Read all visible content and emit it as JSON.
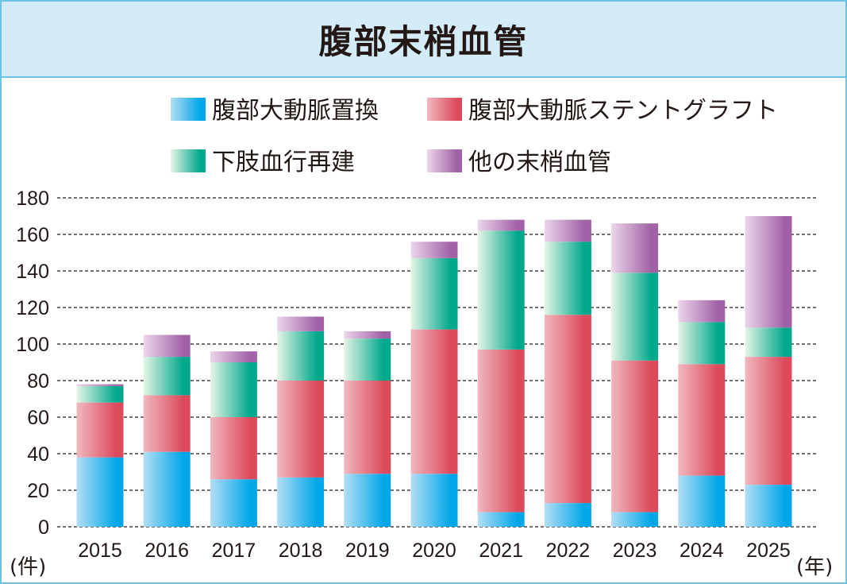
{
  "header": {
    "title": "腹部末梢血管"
  },
  "colors": {
    "border": "#6bc4e6",
    "header_bg": "#d4ebf8"
  },
  "chart_data": {
    "type": "bar",
    "stacked": true,
    "title": "腹部末梢血管",
    "xlabel": "(年)",
    "ylabel": "(件)",
    "ylim": [
      0,
      180
    ],
    "yticks": [
      0,
      20,
      40,
      60,
      80,
      100,
      120,
      140,
      160,
      180
    ],
    "grid": true,
    "legend_position": "top",
    "categories": [
      "2015",
      "2016",
      "2017",
      "2018",
      "2019",
      "2020",
      "2021",
      "2022",
      "2023",
      "2024",
      "2025"
    ],
    "series": [
      {
        "name": "腹部大動脈置換",
        "color_light": "#b3def5",
        "color": "#00a7e8",
        "values": [
          38,
          41,
          26,
          27,
          29,
          29,
          8,
          13,
          8,
          28,
          23
        ]
      },
      {
        "name": "腹部大動脈ステントグラフト",
        "color_light": "#f0b8bf",
        "color": "#dc4a5c",
        "values": [
          30,
          31,
          34,
          53,
          51,
          79,
          89,
          103,
          83,
          61,
          70
        ]
      },
      {
        "name": "下肢血行再建",
        "color_light": "#e6f5e6",
        "color": "#00a88c",
        "values": [
          9,
          21,
          30,
          27,
          23,
          39,
          65,
          40,
          48,
          23,
          16
        ]
      },
      {
        "name": "他の末梢血管",
        "color_light": "#ecd6ea",
        "color": "#a061a6",
        "values": [
          1,
          12,
          6,
          8,
          4,
          9,
          6,
          12,
          27,
          12,
          61
        ]
      }
    ]
  }
}
